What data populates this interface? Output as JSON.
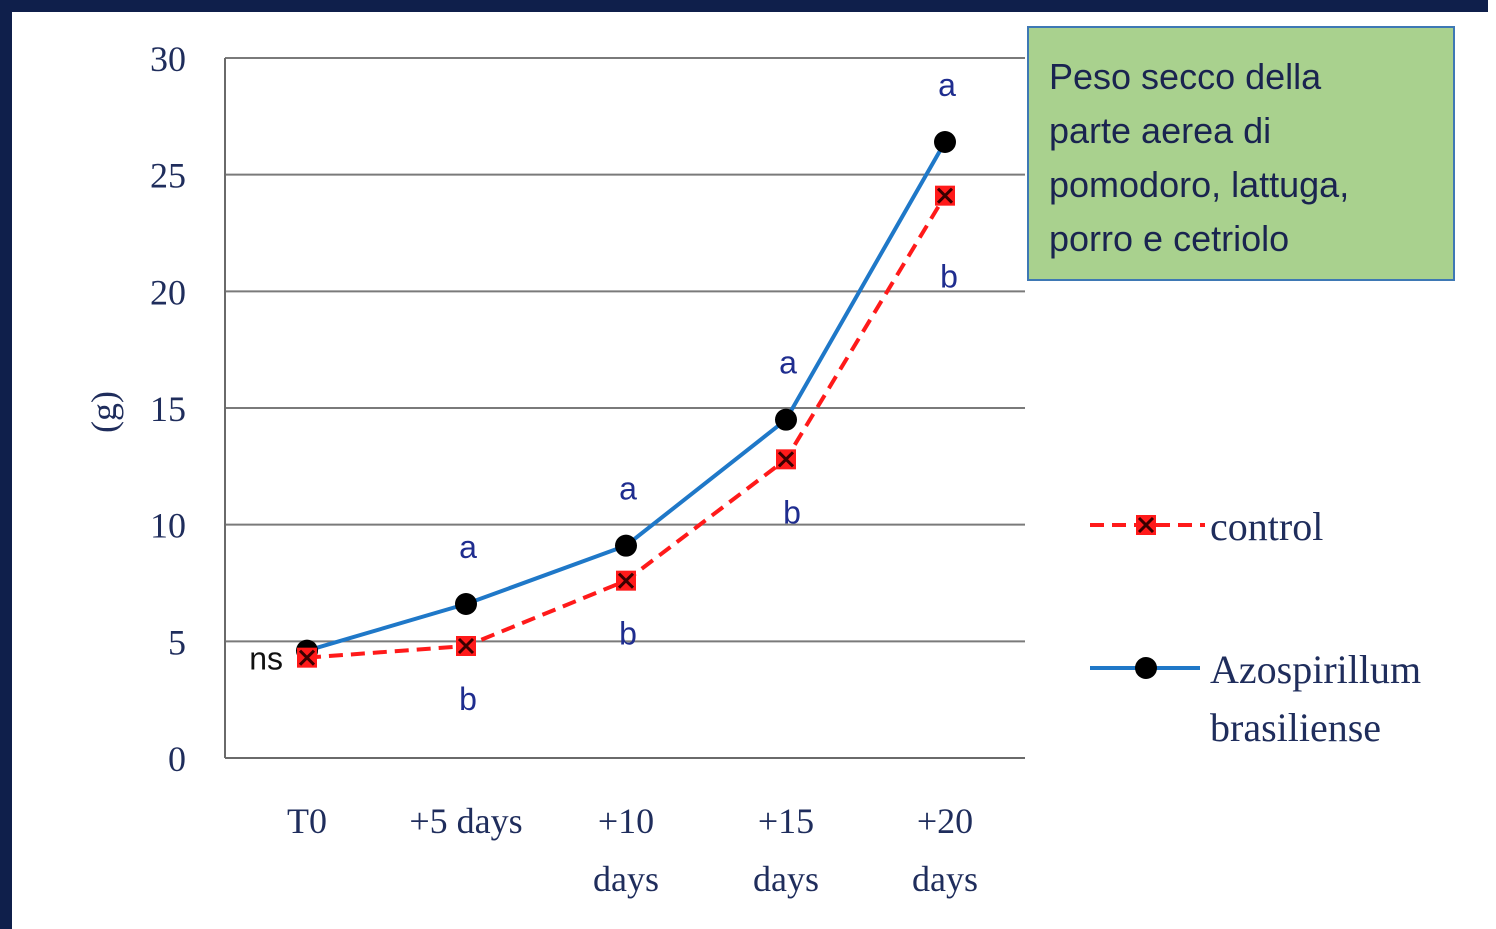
{
  "note_box": {
    "lines": [
      "Peso secco della",
      "parte aerea di",
      "pomodoro, lattuga,",
      "porro e cetriolo"
    ]
  },
  "chart_data": {
    "type": "line",
    "ylabel": "(g)",
    "xlabel": "",
    "ylim": [
      0,
      30
    ],
    "yticks": [
      "0",
      "5",
      "10",
      "15",
      "20",
      "25",
      "30"
    ],
    "categories": [
      [
        "T0"
      ],
      [
        "+5 days"
      ],
      [
        "+10",
        "days"
      ],
      [
        "+15",
        "days"
      ],
      [
        "+20",
        "days"
      ]
    ],
    "series": [
      {
        "name": "control",
        "color": "#ff1a1a",
        "marker": "square-x",
        "line_style": "dashed",
        "values": [
          4.3,
          4.8,
          7.6,
          12.8,
          24.1
        ],
        "labels": [
          "ns",
          "b",
          "b",
          "b",
          "b"
        ]
      },
      {
        "name_lines": [
          "Azospirillum",
          "brasiliense"
        ],
        "color": "#1f78c8",
        "marker": "circle",
        "line_style": "solid",
        "values": [
          4.6,
          6.6,
          9.1,
          14.5,
          26.4
        ],
        "labels": [
          "",
          "a",
          "a",
          "a",
          "a"
        ]
      }
    ],
    "grid": true,
    "legend_position": "right"
  }
}
